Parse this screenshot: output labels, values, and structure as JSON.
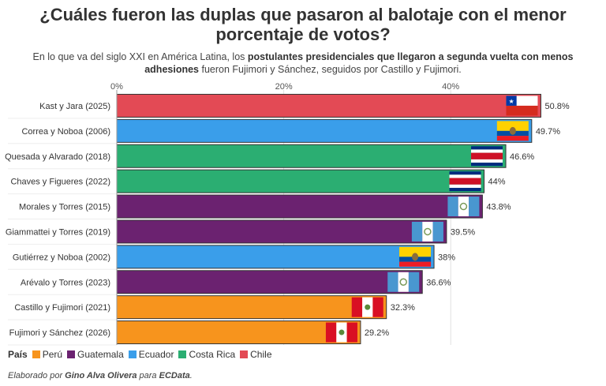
{
  "title_line1": "¿Cuáles fueron las duplas que pasaron al balotaje con el menor",
  "title_line2": "porcentaje de votos?",
  "subtitle": {
    "part1": "En lo que va del siglo XXI en América Latina, los ",
    "bold1": "postulantes presidenciales que llegaron a segunda vuelta con menos",
    "bold2": "adhesiones",
    "part2": " fueron Fujimori y Sánchez, seguidos por Castillo y Fujimori."
  },
  "legend": {
    "title": "País",
    "items": [
      {
        "label": "Perú",
        "color": "#F7941D"
      },
      {
        "label": "Guatemala",
        "color": "#6B2270"
      },
      {
        "label": "Ecuador",
        "color": "#3A9EEA"
      },
      {
        "label": "Costa Rica",
        "color": "#2BAE72"
      },
      {
        "label": "Chile",
        "color": "#E34A55"
      }
    ]
  },
  "credit": {
    "prefix": "Elaborado por ",
    "author": "Gino Alva Olivera",
    "middle": " para ",
    "outlet": "ECData",
    "suffix": "."
  },
  "chart_data": {
    "type": "bar",
    "orientation": "horizontal",
    "xlim": [
      0,
      55
    ],
    "xticks": [
      0,
      20,
      40
    ],
    "xtick_labels": [
      "0%",
      "20%",
      "40%"
    ],
    "grid": true,
    "categories": [
      "Kast y Jara (2025)",
      "Correa y Noboa (2006)",
      "Quesada y Alvarado (2018)",
      "Chaves y Figueres (2022)",
      "Morales y Torres (2015)",
      "Giammattei y Torres (2019)",
      "Gutiérrez y Noboa (2002)",
      "Arévalo y Torres (2023)",
      "Castillo y Fujimori (2021)",
      "Fujimori y Sánchez (2026)"
    ],
    "values": [
      50.8,
      49.7,
      46.6,
      44.0,
      43.8,
      39.5,
      38.0,
      36.6,
      32.3,
      29.2
    ],
    "value_labels": [
      "50.8%",
      "49.7%",
      "46.6%",
      "44%",
      "43.8%",
      "39.5%",
      "38%",
      "36.6%",
      "32.3%",
      "29.2%"
    ],
    "countries": [
      "Chile",
      "Ecuador",
      "Costa Rica",
      "Costa Rica",
      "Guatemala",
      "Guatemala",
      "Ecuador",
      "Guatemala",
      "Perú",
      "Perú"
    ],
    "flags": [
      "chile-flag",
      "ecuador-flag",
      "costa-rica-flag",
      "costa-rica-flag",
      "guatemala-flag",
      "guatemala-flag",
      "ecuador-flag",
      "guatemala-flag",
      "peru-flag",
      "peru-flag"
    ]
  }
}
